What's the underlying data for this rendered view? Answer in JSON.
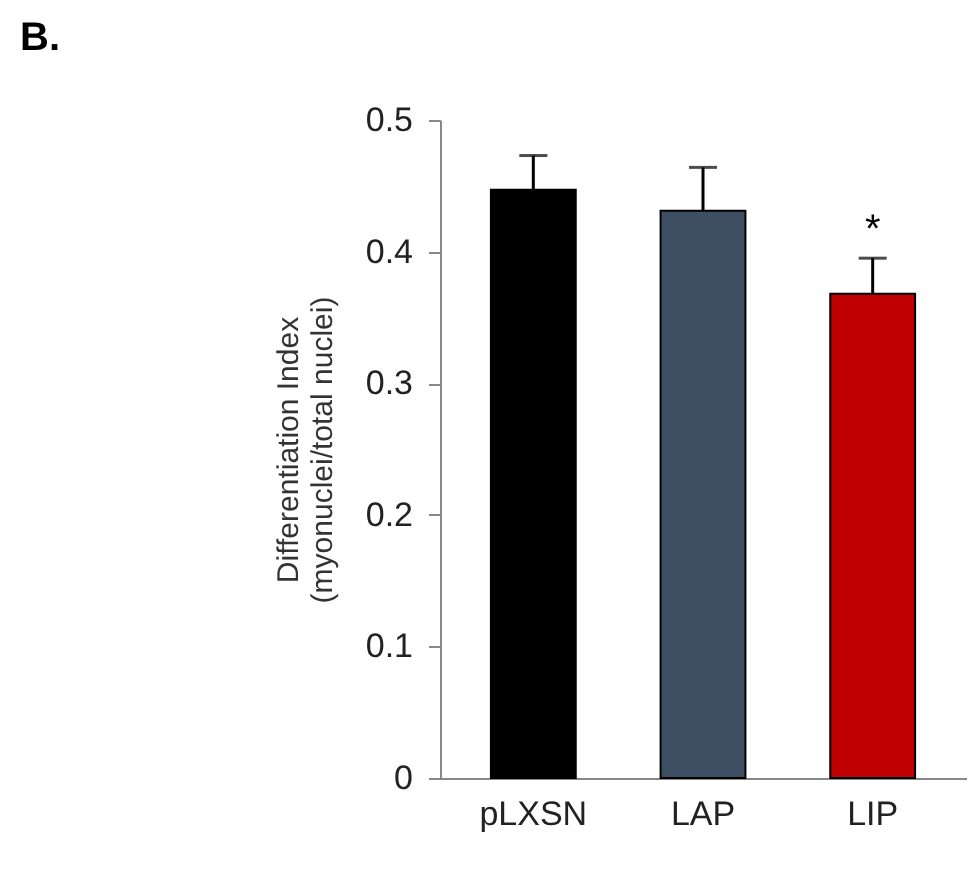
{
  "chart_data": {
    "type": "bar",
    "title": "B.",
    "ylabel": "Differentiation Index\n(myonuclei/total nuclei)",
    "categories": [
      "pLXSN",
      "LAP",
      "LIP"
    ],
    "values": [
      0.447,
      0.431,
      0.368
    ],
    "colors": [
      "#000000",
      "#3f4f63",
      "#c00000"
    ],
    "errors": [
      [
        0.447,
        0.473
      ],
      [
        0.431,
        0.464
      ],
      [
        0.368,
        0.395
      ]
    ],
    "ylim": [
      0,
      0.5
    ],
    "yticks": [
      0,
      0.1,
      0.2,
      0.3,
      0.4,
      0.5
    ],
    "grid": false,
    "annotations": [
      {
        "text": "*",
        "x": "LIP",
        "y": 0.395
      }
    ]
  }
}
